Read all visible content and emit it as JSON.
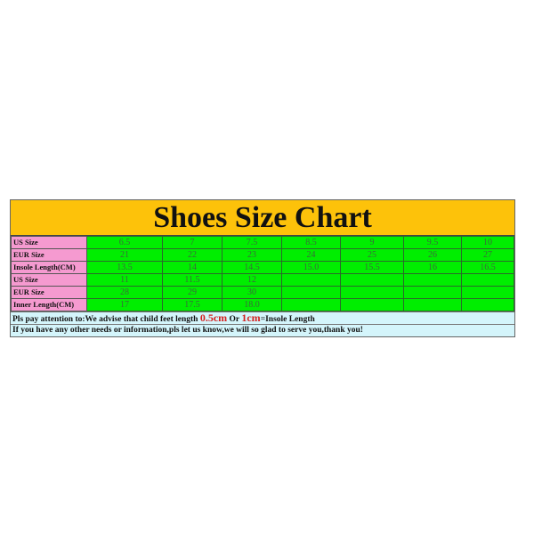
{
  "title": "Shoes Size Chart",
  "rows": [
    {
      "label": "US Size",
      "values": [
        "6.5",
        "7",
        "7.5",
        "8.5",
        "9",
        "9.5",
        "10"
      ]
    },
    {
      "label": "EUR Size",
      "values": [
        "21",
        "22",
        "23",
        "24",
        "25",
        "26",
        "27"
      ]
    },
    {
      "label": "Insole Length(CM)",
      "values": [
        "13.5",
        "14",
        "14.5",
        "15.0",
        "15.5",
        "16",
        "16.5"
      ]
    },
    {
      "label": "US Size",
      "values": [
        "11",
        "11.5",
        "12",
        "",
        "",
        "",
        ""
      ]
    },
    {
      "label": "EUR Size",
      "values": [
        "28",
        "29",
        "30",
        "",
        "",
        "",
        ""
      ]
    },
    {
      "label": "Inner Length(CM)",
      "values": [
        "17",
        "17.5",
        "18.0",
        "",
        "",
        "",
        ""
      ]
    }
  ],
  "note1": {
    "prefix": "Pls pay attention to:We advise that child feet length ",
    "v1": "0.5cm",
    "mid": " Or ",
    "v2": "1cm",
    "suffix": "=Insole Length"
  },
  "note2": "If you have any other needs or information,pls let us know,we will so glad to serve you,thank you!",
  "colors": {
    "header": "#fdc20a",
    "label": "#f59ad0",
    "cells": "#00ee00",
    "note": "#d4f5fb",
    "highlight": "#d42020"
  }
}
